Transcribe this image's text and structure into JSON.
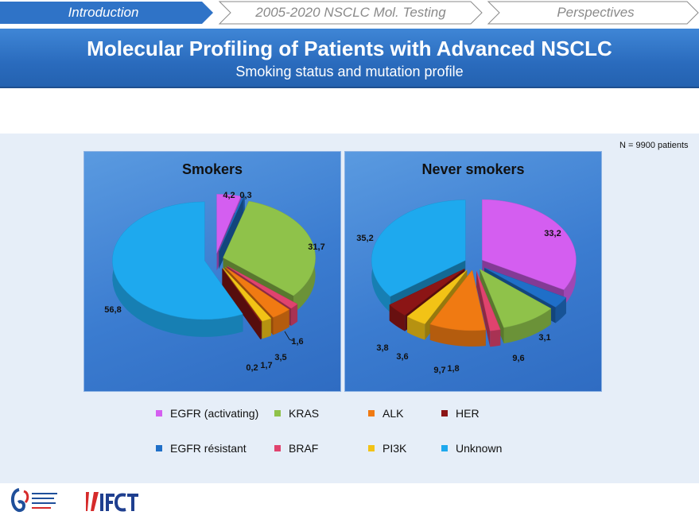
{
  "nav": {
    "tabs": [
      {
        "label": "Introduction",
        "active": true
      },
      {
        "label": "2005-2020 NSCLC Mol. Testing",
        "active": false
      },
      {
        "label": "Perspectives",
        "active": false
      }
    ]
  },
  "header": {
    "title": "Molecular Profiling of Patients with Advanced NSCLC",
    "subtitle": "Smoking status and mutation profile"
  },
  "n_patients": "N = 9900 patients",
  "colors": {
    "EGFR (activating)": "#d45ef0",
    "EGFR résistant": "#1f6fc8",
    "KRAS": "#8fc24a",
    "BRAF": "#e0436e",
    "ALK": "#f07a12",
    "PI3K": "#f2c316",
    "HER": "#8b1515",
    "Unknown": "#1ea9ee"
  },
  "chart_data": [
    {
      "type": "pie",
      "title": "Smokers",
      "labels": [
        "EGFR (activating)",
        "EGFR résistant",
        "KRAS",
        "BRAF",
        "ALK",
        "PI3K",
        "HER",
        "Unknown"
      ],
      "values": [
        4.2,
        0.3,
        31.7,
        1.6,
        3.5,
        1.7,
        0.2,
        56.8
      ],
      "value_labels": [
        "4,2",
        "0,3",
        "31,7",
        "1,6",
        "3,5",
        "1,7",
        "0,2",
        "56,8"
      ]
    },
    {
      "type": "pie",
      "title": "Never smokers",
      "labels": [
        "EGFR (activating)",
        "EGFR résistant",
        "KRAS",
        "BRAF",
        "ALK",
        "PI3K",
        "HER",
        "Unknown"
      ],
      "values": [
        33.2,
        3.1,
        9.6,
        1.8,
        9.7,
        3.6,
        3.8,
        35.2
      ],
      "value_labels": [
        "33,2",
        "3,1",
        "9,6",
        "1,8",
        "9,7",
        "3,6",
        "3,8",
        "35,2"
      ]
    }
  ],
  "legend": [
    {
      "label": "EGFR (activating)"
    },
    {
      "label": "KRAS"
    },
    {
      "label": "ALK"
    },
    {
      "label": "HER"
    },
    {
      "label": "EGFR résistant"
    },
    {
      "label": "BRAF"
    },
    {
      "label": "PI3K"
    },
    {
      "label": "Unknown"
    }
  ],
  "logos": {
    "inca": "Institut National du Cancer",
    "ifct": "IFCT"
  }
}
